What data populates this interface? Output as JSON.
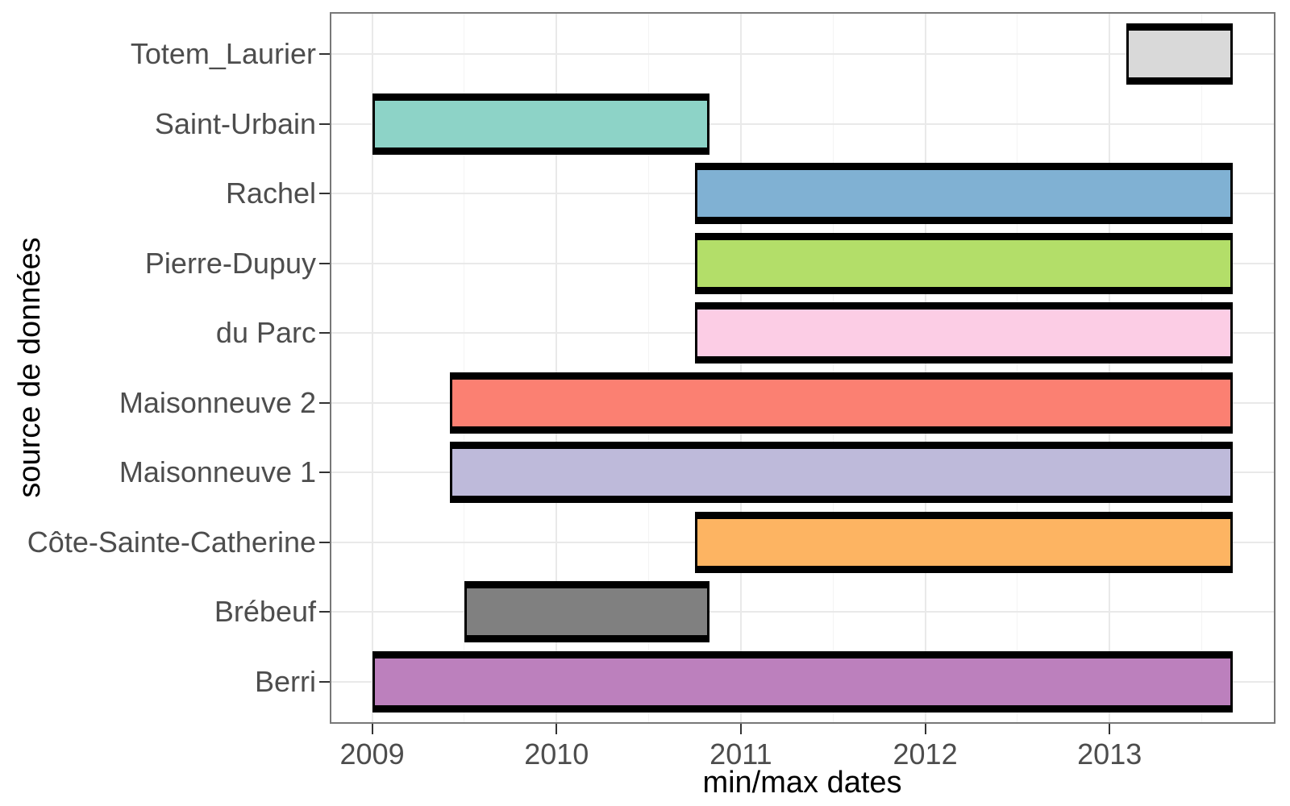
{
  "chart_data": {
    "type": "bar",
    "subtype": "horizontal-date-range",
    "title": "",
    "xlabel": "min/max dates",
    "ylabel": "source de données",
    "x_domain": [
      2008.77,
      2013.9
    ],
    "x_major_ticks": [
      2009,
      2010,
      2011,
      2012,
      2013
    ],
    "x_tick_labels": [
      "2009",
      "2010",
      "2011",
      "2012",
      "2013"
    ],
    "x_minor_ticks": [
      2009.5,
      2010.5,
      2011.5,
      2012.5,
      2013.5
    ],
    "grid": true,
    "legend": false,
    "categories": [
      "Totem_Laurier",
      "Saint-Urbain",
      "Rachel",
      "Pierre-Dupuy",
      "du Parc",
      "Maisonneuve 2",
      "Maisonneuve 1",
      "Côte-Sainte-Catherine",
      "Brébeuf",
      "Berri"
    ],
    "series": [
      {
        "name": "Totem_Laurier",
        "start": 2013.09,
        "end": 2013.67,
        "color": "#d9d9d9"
      },
      {
        "name": "Saint-Urbain",
        "start": 2009.0,
        "end": 2010.83,
        "color": "#8dd3c7"
      },
      {
        "name": "Rachel",
        "start": 2010.75,
        "end": 2013.67,
        "color": "#80b1d3"
      },
      {
        "name": "Pierre-Dupuy",
        "start": 2010.75,
        "end": 2013.67,
        "color": "#b3de69"
      },
      {
        "name": "du Parc",
        "start": 2010.75,
        "end": 2013.67,
        "color": "#fccde5"
      },
      {
        "name": "Maisonneuve 2",
        "start": 2009.42,
        "end": 2013.67,
        "color": "#fb8072"
      },
      {
        "name": "Maisonneuve 1",
        "start": 2009.42,
        "end": 2013.67,
        "color": "#bebada"
      },
      {
        "name": "Côte-Sainte-Catherine",
        "start": 2010.75,
        "end": 2013.67,
        "color": "#fdb462"
      },
      {
        "name": "Brébeuf",
        "start": 2009.5,
        "end": 2010.83,
        "color": "#808080"
      },
      {
        "name": "Berri",
        "start": 2009.0,
        "end": 2013.67,
        "color": "#bc80bd"
      }
    ],
    "bar_border_color": "#000000",
    "panel_border_color": "#787878",
    "grid_major_color": "#e9e9e9",
    "grid_minor_color": "#f4f4f4",
    "tick_color": "#333333",
    "tick_label_color": "#4d4d4d"
  }
}
